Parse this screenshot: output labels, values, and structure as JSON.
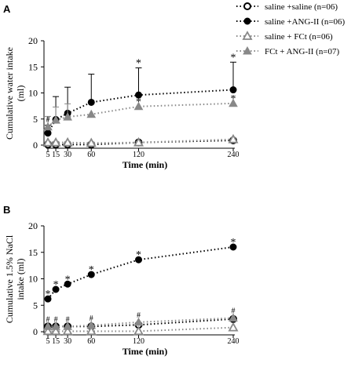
{
  "chart_data": [
    {
      "panel": "A",
      "type": "line",
      "title": "",
      "xlabel": "Time (min)",
      "ylabel": "Cumulative water intake (ml)",
      "ylabel_lines": [
        "Cumulative water intake",
        "(ml)"
      ],
      "xlim": [
        0,
        240
      ],
      "ylim": [
        0,
        20
      ],
      "xticks": [
        5,
        15,
        30,
        60,
        120,
        240
      ],
      "yticks": [
        0,
        5,
        10,
        15,
        20
      ],
      "legend_position": "top-right",
      "series": [
        {
          "name": "saline +saline (n=06)",
          "marker": "open-circle",
          "color": "#000000",
          "x": [
            5,
            15,
            30,
            60,
            120,
            240
          ],
          "y": [
            0.1,
            0.1,
            0.1,
            0.1,
            0.5,
            0.9
          ],
          "error": [
            0.2,
            0.2,
            0.2,
            0.2,
            0.3,
            0.3
          ]
        },
        {
          "name": "saline +ANG-II (n=06)",
          "marker": "filled-circle",
          "color": "#000000",
          "x": [
            5,
            15,
            30,
            60,
            120,
            240
          ],
          "y": [
            2.3,
            4.9,
            6.1,
            8.2,
            9.6,
            10.6
          ],
          "error": [
            1.5,
            4.4,
            5.0,
            5.4,
            5.2,
            5.3
          ],
          "annotations": [
            {
              "x": 120,
              "text": "*"
            },
            {
              "x": 240,
              "text": "*"
            }
          ]
        },
        {
          "name": "saline + FCt (n=06)",
          "marker": "open-triangle",
          "color": "#888888",
          "x": [
            5,
            15,
            30,
            60,
            120,
            240
          ],
          "y": [
            0.5,
            0.5,
            0.5,
            0.4,
            0.5,
            1.1
          ],
          "error": [
            0.2,
            0.2,
            0.2,
            0.2,
            0.2,
            0.3
          ]
        },
        {
          "name": "FCt + ANG-II (n=07)",
          "marker": "filled-triangle",
          "color": "#888888",
          "x": [
            5,
            15,
            30,
            60,
            120,
            240
          ],
          "y": [
            3.5,
            4.8,
            5.4,
            5.9,
            7.4,
            8.0
          ],
          "error": [
            2.0,
            2.5,
            2.5,
            0,
            0,
            0
          ],
          "annotations": [
            {
              "x": 5,
              "text": "#"
            },
            {
              "x": 120,
              "text": "*"
            },
            {
              "x": 240,
              "text": "*"
            }
          ]
        }
      ]
    },
    {
      "panel": "B",
      "type": "line",
      "title": "",
      "xlabel": "Time (min)",
      "ylabel": "Cumulative 1.5% NaCl intake (ml)",
      "ylabel_lines": [
        "Cumulative 1.5% NaCl",
        "intake (ml)"
      ],
      "xlim": [
        0,
        240
      ],
      "ylim": [
        0,
        20
      ],
      "xticks": [
        5,
        15,
        30,
        60,
        120,
        240
      ],
      "yticks": [
        0,
        5,
        10,
        15,
        20
      ],
      "series": [
        {
          "name": "saline +saline (n=06)",
          "marker": "open-circle",
          "color": "#000000",
          "x": [
            5,
            15,
            30,
            60,
            120,
            240
          ],
          "y": [
            1.0,
            1.0,
            1.0,
            1.0,
            1.3,
            2.4
          ]
        },
        {
          "name": "saline +ANG-II (n=06)",
          "marker": "filled-circle",
          "color": "#000000",
          "x": [
            5,
            15,
            30,
            60,
            120,
            240
          ],
          "y": [
            6.2,
            8.0,
            9.0,
            10.8,
            13.6,
            16.0
          ],
          "annotations": [
            {
              "x": 5,
              "text": "*"
            },
            {
              "x": 15,
              "text": "*"
            },
            {
              "x": 30,
              "text": "*"
            },
            {
              "x": 60,
              "text": "*"
            },
            {
              "x": 120,
              "text": "*"
            },
            {
              "x": 240,
              "text": "*"
            }
          ]
        },
        {
          "name": "saline + FCt (n=06)",
          "marker": "open-triangle",
          "color": "#888888",
          "x": [
            5,
            15,
            30,
            60,
            120,
            240
          ],
          "y": [
            0.1,
            0.1,
            0.1,
            0.1,
            0.1,
            0.8
          ]
        },
        {
          "name": "FCt + ANG-II (n=07)",
          "marker": "filled-triangle",
          "color": "#888888",
          "x": [
            5,
            15,
            30,
            60,
            120,
            240
          ],
          "y": [
            1.0,
            1.0,
            1.0,
            1.2,
            1.8,
            2.6
          ],
          "annotations": [
            {
              "x": 5,
              "text": "#"
            },
            {
              "x": 15,
              "text": "#"
            },
            {
              "x": 30,
              "text": "#"
            },
            {
              "x": 60,
              "text": "#"
            },
            {
              "x": 120,
              "text": "#"
            },
            {
              "x": 240,
              "text": "#"
            }
          ]
        }
      ]
    }
  ],
  "panels": {
    "a": {
      "letter": "A"
    },
    "b": {
      "letter": "B"
    }
  },
  "legend": {
    "items": [
      {
        "label": "saline +saline (n=06)",
        "marker": "open-circle",
        "color": "#000000"
      },
      {
        "label": "saline +ANG-II (n=06)",
        "marker": "filled-circle",
        "color": "#000000"
      },
      {
        "label": "saline + FCt (n=06)",
        "marker": "open-triangle",
        "color": "#888888"
      },
      {
        "label": "FCt + ANG-II (n=07)",
        "marker": "filled-triangle",
        "color": "#888888"
      }
    ]
  }
}
